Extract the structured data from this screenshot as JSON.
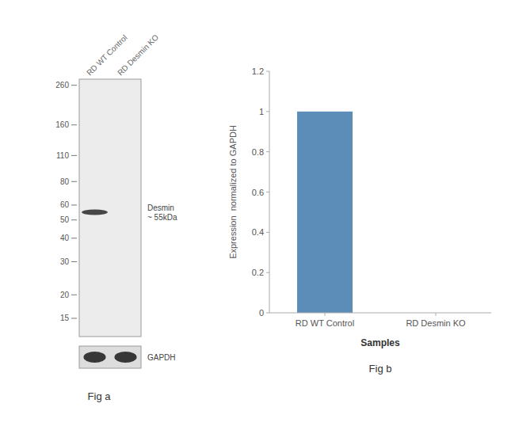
{
  "chart_data": [
    {
      "type": "blot",
      "title": "Fig a",
      "categories": [
        "RD WT Control",
        "RD Desmin KO"
      ],
      "log": "y",
      "ylim": [
        12,
        280
      ],
      "yticks": [
        260,
        160,
        110,
        80,
        60,
        50,
        40,
        30,
        20,
        15
      ],
      "series": [
        {
          "name": "Desmin\n~ 55kDa",
          "color": "#2a2a2a",
          "values": [
            55,
            null
          ]
        }
      ],
      "annotations": [
        "GAPDH"
      ]
    },
    {
      "type": "bar",
      "title": "Fig b",
      "categories": [
        "RD WT Control",
        "RD Desmin KO"
      ],
      "values": [
        1.0,
        0.0
      ],
      "color": "#5b8db8",
      "xlabel": "Samples",
      "ylabel": "Expression  normalized to GAPDH",
      "ylim": [
        0,
        1.2
      ],
      "yticks": [
        0,
        0.2,
        0.4,
        0.6,
        0.8,
        1,
        1.2
      ],
      "grid": false
    }
  ]
}
